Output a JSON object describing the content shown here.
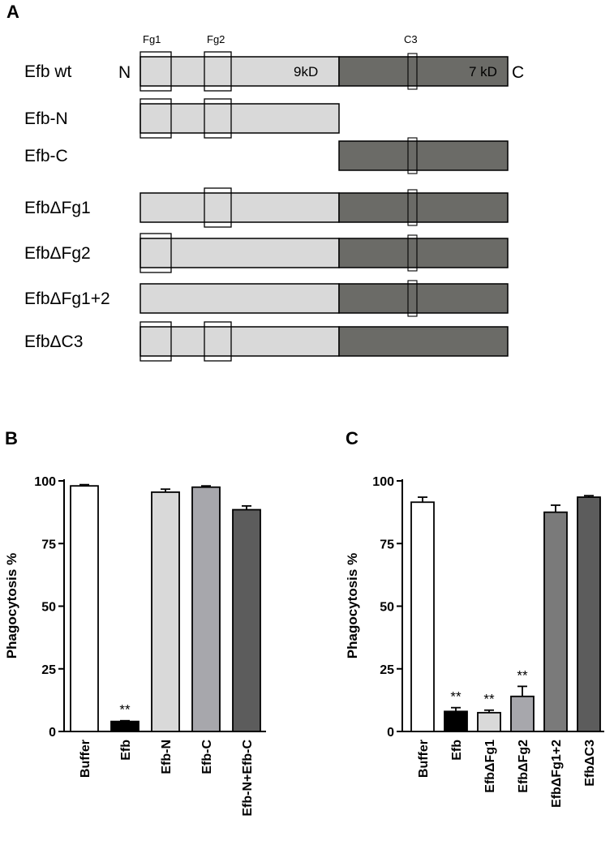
{
  "panel_a": {
    "label": "A",
    "n_label": "N",
    "c_label": "C",
    "kd_n": "9kD",
    "kd_c": "7 kD",
    "motif_fg1": "Fg1",
    "motif_fg2": "Fg2",
    "motif_c3": "C3",
    "rows": [
      {
        "label": "Efb wt",
        "n": true,
        "c": true,
        "fg1": true,
        "fg2": true,
        "c3": true
      },
      {
        "label": "Efb-N",
        "n": true,
        "c": false,
        "fg1": true,
        "fg2": true,
        "c3": false
      },
      {
        "label": "Efb-C",
        "n": false,
        "c": true,
        "fg1": false,
        "fg2": false,
        "c3": true
      },
      {
        "label": "EfbΔFg1",
        "n": true,
        "c": true,
        "fg1": false,
        "fg2": true,
        "c3": true
      },
      {
        "label": "EfbΔFg2",
        "n": true,
        "c": true,
        "fg1": true,
        "fg2": false,
        "c3": true
      },
      {
        "label": "EfbΔFg1+2",
        "n": true,
        "c": true,
        "fg1": false,
        "fg2": false,
        "c3": true
      },
      {
        "label": "EfbΔC3",
        "n": true,
        "c": true,
        "fg1": true,
        "fg2": true,
        "c3": false
      }
    ],
    "colors": {
      "n_domain": "#d9d9d9",
      "c_domain": "#6b6b67"
    }
  },
  "chart_data": [
    {
      "panel": "B",
      "type": "bar",
      "title": "",
      "xlabel": "",
      "ylabel": "Phagocytosis %",
      "ylim": [
        0,
        100
      ],
      "yticks": [
        "0",
        "25",
        "50",
        "75",
        "100"
      ],
      "categories": [
        "Buffer",
        "Efb",
        "Efb-N",
        "Efb-C",
        "Efb-N+Efb-C"
      ],
      "values": [
        98,
        4,
        95.5,
        97.5,
        88.5
      ],
      "errors": [
        0.5,
        0.3,
        1.2,
        0.5,
        1.5
      ],
      "annotations": [
        "",
        "**",
        "",
        "",
        ""
      ],
      "colors": [
        "#ffffff",
        "#000000",
        "#d9d9d9",
        "#a7a7ac",
        "#5c5c5c"
      ]
    },
    {
      "panel": "C",
      "type": "bar",
      "title": "",
      "xlabel": "",
      "ylabel": "Phagocytosis %",
      "ylim": [
        0,
        100
      ],
      "yticks": [
        "0",
        "25",
        "50",
        "75",
        "100"
      ],
      "categories": [
        "Buffer",
        "Efb",
        "EfbΔFg1",
        "EfbΔFg2",
        "EfbΔFg1+2",
        "EfbΔC3"
      ],
      "values": [
        91.5,
        8,
        7.5,
        14,
        87.5,
        93.5
      ],
      "errors": [
        2.0,
        1.5,
        1.0,
        4.0,
        2.8,
        0.6
      ],
      "annotations": [
        "",
        "**",
        "**",
        "**",
        "",
        ""
      ],
      "colors": [
        "#ffffff",
        "#000000",
        "#d9d9d9",
        "#a7a7ac",
        "#7a7a7a",
        "#5c5c5c"
      ]
    }
  ]
}
